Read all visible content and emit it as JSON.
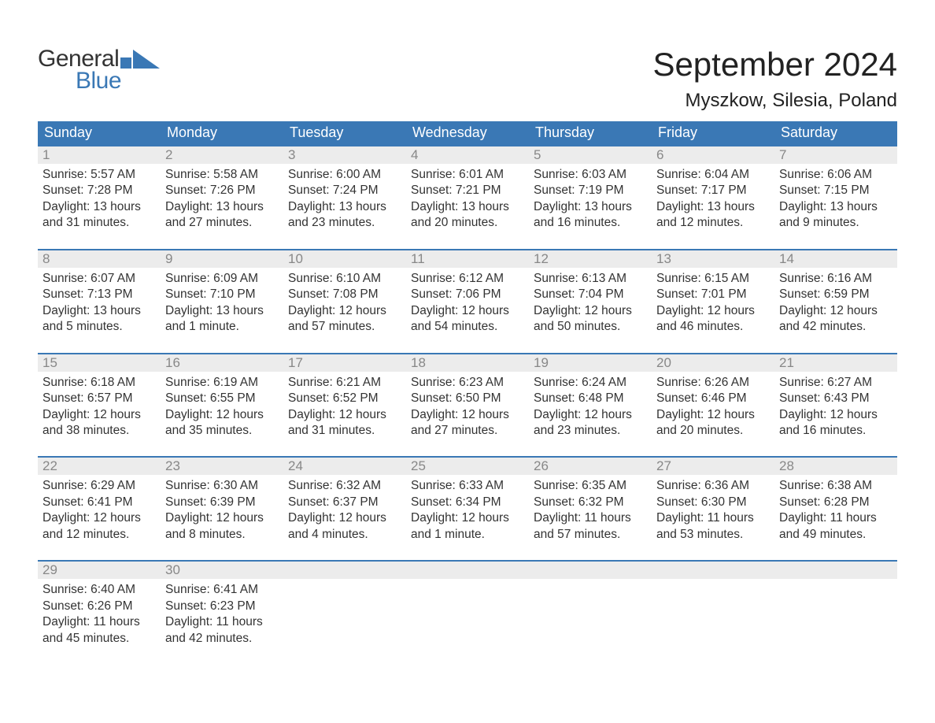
{
  "brand": {
    "word1": "General",
    "word2": "Blue",
    "flag_color": "#3a78b5",
    "text1_color": "#333333",
    "text2_color": "#3a78b5"
  },
  "title": "September 2024",
  "location": "Myszkow, Silesia, Poland",
  "colors": {
    "header_bg": "#3a78b5",
    "header_text": "#ffffff",
    "daynum_bg": "#ececec",
    "daynum_text": "#888888",
    "body_text": "#333333",
    "row_border": "#3a78b5",
    "page_bg": "#ffffff"
  },
  "weekdays": [
    "Sunday",
    "Monday",
    "Tuesday",
    "Wednesday",
    "Thursday",
    "Friday",
    "Saturday"
  ],
  "weeks": [
    [
      {
        "day": "1",
        "sunrise": "5:57 AM",
        "sunset": "7:28 PM",
        "daylight": "13 hours and 31 minutes."
      },
      {
        "day": "2",
        "sunrise": "5:58 AM",
        "sunset": "7:26 PM",
        "daylight": "13 hours and 27 minutes."
      },
      {
        "day": "3",
        "sunrise": "6:00 AM",
        "sunset": "7:24 PM",
        "daylight": "13 hours and 23 minutes."
      },
      {
        "day": "4",
        "sunrise": "6:01 AM",
        "sunset": "7:21 PM",
        "daylight": "13 hours and 20 minutes."
      },
      {
        "day": "5",
        "sunrise": "6:03 AM",
        "sunset": "7:19 PM",
        "daylight": "13 hours and 16 minutes."
      },
      {
        "day": "6",
        "sunrise": "6:04 AM",
        "sunset": "7:17 PM",
        "daylight": "13 hours and 12 minutes."
      },
      {
        "day": "7",
        "sunrise": "6:06 AM",
        "sunset": "7:15 PM",
        "daylight": "13 hours and 9 minutes."
      }
    ],
    [
      {
        "day": "8",
        "sunrise": "6:07 AM",
        "sunset": "7:13 PM",
        "daylight": "13 hours and 5 minutes."
      },
      {
        "day": "9",
        "sunrise": "6:09 AM",
        "sunset": "7:10 PM",
        "daylight": "13 hours and 1 minute."
      },
      {
        "day": "10",
        "sunrise": "6:10 AM",
        "sunset": "7:08 PM",
        "daylight": "12 hours and 57 minutes."
      },
      {
        "day": "11",
        "sunrise": "6:12 AM",
        "sunset": "7:06 PM",
        "daylight": "12 hours and 54 minutes."
      },
      {
        "day": "12",
        "sunrise": "6:13 AM",
        "sunset": "7:04 PM",
        "daylight": "12 hours and 50 minutes."
      },
      {
        "day": "13",
        "sunrise": "6:15 AM",
        "sunset": "7:01 PM",
        "daylight": "12 hours and 46 minutes."
      },
      {
        "day": "14",
        "sunrise": "6:16 AM",
        "sunset": "6:59 PM",
        "daylight": "12 hours and 42 minutes."
      }
    ],
    [
      {
        "day": "15",
        "sunrise": "6:18 AM",
        "sunset": "6:57 PM",
        "daylight": "12 hours and 38 minutes."
      },
      {
        "day": "16",
        "sunrise": "6:19 AM",
        "sunset": "6:55 PM",
        "daylight": "12 hours and 35 minutes."
      },
      {
        "day": "17",
        "sunrise": "6:21 AM",
        "sunset": "6:52 PM",
        "daylight": "12 hours and 31 minutes."
      },
      {
        "day": "18",
        "sunrise": "6:23 AM",
        "sunset": "6:50 PM",
        "daylight": "12 hours and 27 minutes."
      },
      {
        "day": "19",
        "sunrise": "6:24 AM",
        "sunset": "6:48 PM",
        "daylight": "12 hours and 23 minutes."
      },
      {
        "day": "20",
        "sunrise": "6:26 AM",
        "sunset": "6:46 PM",
        "daylight": "12 hours and 20 minutes."
      },
      {
        "day": "21",
        "sunrise": "6:27 AM",
        "sunset": "6:43 PM",
        "daylight": "12 hours and 16 minutes."
      }
    ],
    [
      {
        "day": "22",
        "sunrise": "6:29 AM",
        "sunset": "6:41 PM",
        "daylight": "12 hours and 12 minutes."
      },
      {
        "day": "23",
        "sunrise": "6:30 AM",
        "sunset": "6:39 PM",
        "daylight": "12 hours and 8 minutes."
      },
      {
        "day": "24",
        "sunrise": "6:32 AM",
        "sunset": "6:37 PM",
        "daylight": "12 hours and 4 minutes."
      },
      {
        "day": "25",
        "sunrise": "6:33 AM",
        "sunset": "6:34 PM",
        "daylight": "12 hours and 1 minute."
      },
      {
        "day": "26",
        "sunrise": "6:35 AM",
        "sunset": "6:32 PM",
        "daylight": "11 hours and 57 minutes."
      },
      {
        "day": "27",
        "sunrise": "6:36 AM",
        "sunset": "6:30 PM",
        "daylight": "11 hours and 53 minutes."
      },
      {
        "day": "28",
        "sunrise": "6:38 AM",
        "sunset": "6:28 PM",
        "daylight": "11 hours and 49 minutes."
      }
    ],
    [
      {
        "day": "29",
        "sunrise": "6:40 AM",
        "sunset": "6:26 PM",
        "daylight": "11 hours and 45 minutes."
      },
      {
        "day": "30",
        "sunrise": "6:41 AM",
        "sunset": "6:23 PM",
        "daylight": "11 hours and 42 minutes."
      },
      null,
      null,
      null,
      null,
      null
    ]
  ],
  "labels": {
    "sunrise": "Sunrise: ",
    "sunset": "Sunset: ",
    "daylight": "Daylight: "
  }
}
